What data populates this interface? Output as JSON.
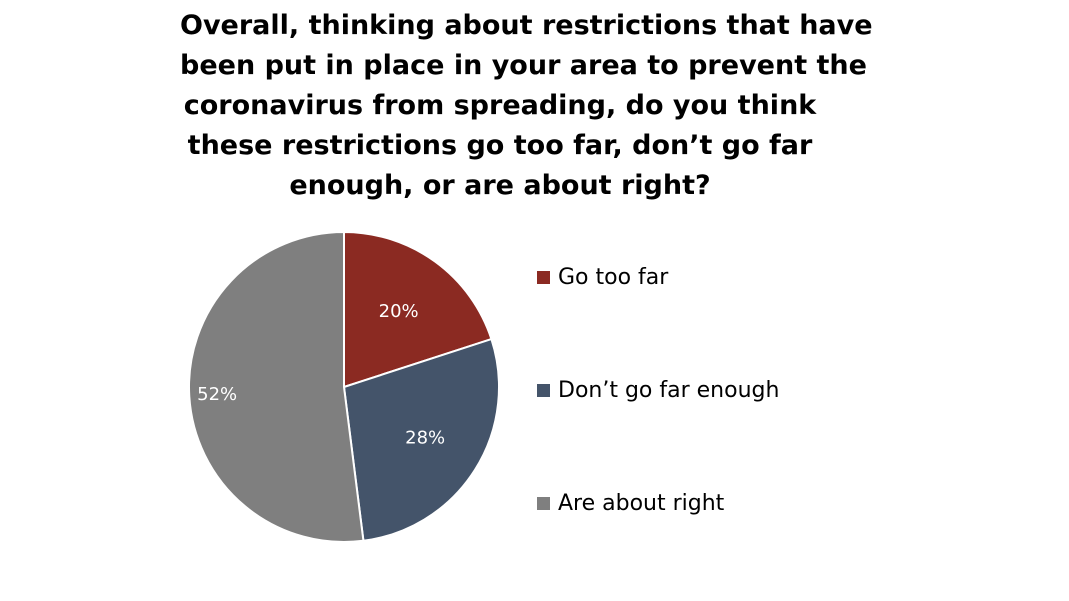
{
  "chart_data": {
    "type": "pie",
    "title_lines": [
      "Overall, thinking about restrictions that have",
      "been put in place in your area to prevent the",
      "coronavirus from spreading, do you think",
      "these restrictions go too far, don’t go far",
      "enough, or are about right?"
    ],
    "slices": [
      {
        "label": "Go too far",
        "value": 20,
        "display": "20%",
        "color": "#8b2a22"
      },
      {
        "label": "Don’t go far enough",
        "value": 28,
        "display": "28%",
        "color": "#44546a"
      },
      {
        "label": "Are about right",
        "value": 52,
        "display": "52%",
        "color": "#7f7f7f"
      }
    ],
    "legend_position": "right"
  }
}
